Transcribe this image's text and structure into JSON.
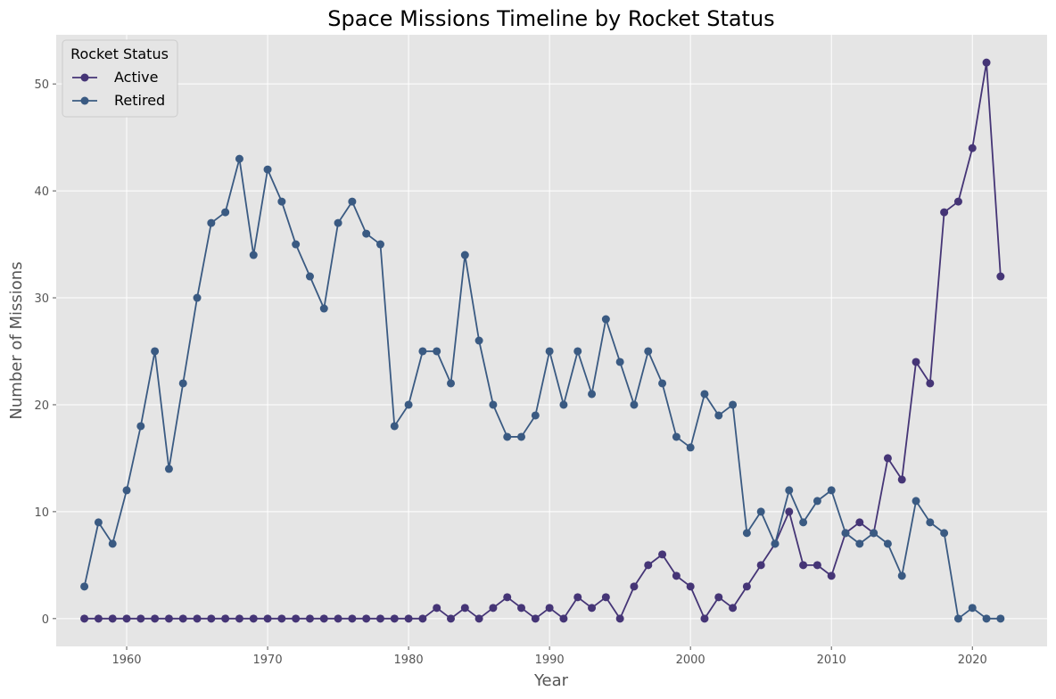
{
  "chart_data": {
    "type": "line",
    "title": "Space Missions Timeline by Rocket Status",
    "xlabel": "Year",
    "ylabel": "Number of Missions",
    "xlim": [
      1955,
      2025.3
    ],
    "ylim": [
      -2.6,
      54.6
    ],
    "xticks": [
      1960,
      1970,
      1980,
      1990,
      2000,
      2010,
      2020
    ],
    "yticks": [
      0,
      10,
      20,
      30,
      40,
      50
    ],
    "grid": true,
    "legend": {
      "title": "Rocket Status",
      "placement": "top-left"
    },
    "x": [
      1957,
      1958,
      1959,
      1960,
      1961,
      1962,
      1963,
      1964,
      1965,
      1966,
      1967,
      1968,
      1969,
      1970,
      1971,
      1972,
      1973,
      1974,
      1975,
      1976,
      1977,
      1978,
      1979,
      1980,
      1981,
      1982,
      1983,
      1984,
      1985,
      1986,
      1987,
      1988,
      1989,
      1990,
      1991,
      1992,
      1993,
      1994,
      1995,
      1996,
      1997,
      1998,
      1999,
      2000,
      2001,
      2002,
      2003,
      2004,
      2005,
      2006,
      2007,
      2008,
      2009,
      2010,
      2011,
      2012,
      2013,
      2014,
      2015,
      2016,
      2017,
      2018,
      2019,
      2020,
      2021,
      2022
    ],
    "series": [
      {
        "name": "Active",
        "color": "#453576",
        "values": [
          0,
          0,
          0,
          0,
          0,
          0,
          0,
          0,
          0,
          0,
          0,
          0,
          0,
          0,
          0,
          0,
          0,
          0,
          0,
          0,
          0,
          0,
          0,
          0,
          0,
          1,
          0,
          1,
          0,
          1,
          2,
          1,
          0,
          1,
          0,
          2,
          1,
          2,
          0,
          3,
          5,
          6,
          4,
          3,
          0,
          2,
          1,
          3,
          5,
          7,
          10,
          5,
          5,
          4,
          8,
          9,
          8,
          15,
          13,
          24,
          22,
          38,
          39,
          44,
          52,
          32
        ]
      },
      {
        "name": "Retired",
        "color": "#3a5a82",
        "values": [
          3,
          9,
          7,
          12,
          18,
          25,
          14,
          22,
          30,
          37,
          38,
          43,
          34,
          42,
          39,
          35,
          32,
          29,
          37,
          39,
          36,
          35,
          18,
          20,
          25,
          25,
          22,
          34,
          26,
          20,
          17,
          17,
          19,
          25,
          20,
          25,
          21,
          28,
          24,
          20,
          25,
          22,
          17,
          16,
          21,
          19,
          20,
          8,
          10,
          7,
          12,
          9,
          11,
          12,
          8,
          7,
          8,
          7,
          4,
          11,
          9,
          8,
          0,
          1,
          0,
          0
        ]
      }
    ],
    "colors": {
      "plot_background": "#e5e5e5",
      "grid": "#ffffff"
    }
  }
}
